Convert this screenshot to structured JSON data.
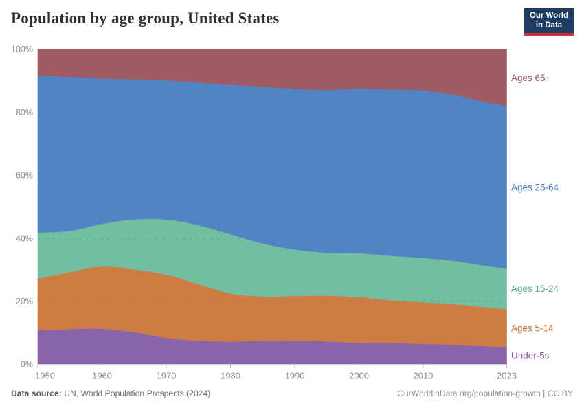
{
  "header": {
    "title": "Population by age group, United States"
  },
  "logo": {
    "line1": "Our World",
    "line2": "in Data"
  },
  "chart_data": {
    "type": "area",
    "stacked": true,
    "percent_stacked": true,
    "title": "Population by age group, United States",
    "xlabel": "",
    "ylabel": "",
    "xlim": [
      1950,
      2023
    ],
    "ylim": [
      0,
      100
    ],
    "grid": "horizontal-dashed",
    "legend_position": "right",
    "x": [
      1950,
      1955,
      1960,
      1965,
      1970,
      1975,
      1980,
      1985,
      1990,
      1995,
      2000,
      2005,
      2010,
      2015,
      2020,
      2023
    ],
    "x_ticks": [
      1950,
      1960,
      1970,
      1980,
      1990,
      2000,
      2010,
      2023
    ],
    "y_ticks": [
      0,
      20,
      40,
      60,
      80,
      100
    ],
    "y_tick_suffix": "%",
    "series": [
      {
        "name": "Under-5s",
        "color": "#8a64ab",
        "label_color": "#8058a5",
        "values": [
          10.8,
          11.2,
          11.3,
          10.2,
          8.4,
          7.5,
          7.2,
          7.5,
          7.5,
          7.3,
          6.8,
          6.8,
          6.5,
          6.2,
          5.7,
          5.4
        ]
      },
      {
        "name": "Ages 5-14",
        "color": "#ce7c42",
        "label_color": "#cd6d2e",
        "values": [
          16.4,
          18.1,
          19.8,
          19.9,
          20.1,
          18.0,
          15.3,
          14.1,
          14.2,
          14.5,
          14.6,
          13.5,
          13.2,
          12.9,
          12.4,
          12.1
        ]
      },
      {
        "name": "Ages 15-24",
        "color": "#73bda0",
        "label_color": "#55ab8b",
        "values": [
          14.6,
          13.1,
          13.5,
          15.9,
          17.5,
          18.7,
          18.8,
          16.8,
          14.8,
          13.7,
          13.9,
          14.2,
          14.1,
          13.7,
          13.1,
          12.9
        ]
      },
      {
        "name": "Ages 25-64",
        "color": "#5184c5",
        "label_color": "#4076bc",
        "values": [
          50.0,
          48.9,
          46.2,
          44.5,
          44.2,
          45.3,
          47.5,
          49.8,
          51.0,
          51.6,
          52.3,
          52.8,
          53.2,
          52.7,
          52.0,
          51.6
        ]
      },
      {
        "name": "Ages 65+",
        "color": "#a15b63",
        "label_color": "#9c4f5b",
        "values": [
          8.2,
          8.7,
          9.2,
          9.5,
          9.8,
          10.5,
          11.2,
          11.8,
          12.5,
          12.9,
          12.4,
          12.7,
          13.0,
          14.5,
          16.8,
          18.0
        ]
      }
    ]
  },
  "footer": {
    "source_label": "Data source:",
    "source_value": " UN, World Population Prospects (2024)",
    "attribution": "OurWorldinData.org/population-growth | CC BY"
  }
}
